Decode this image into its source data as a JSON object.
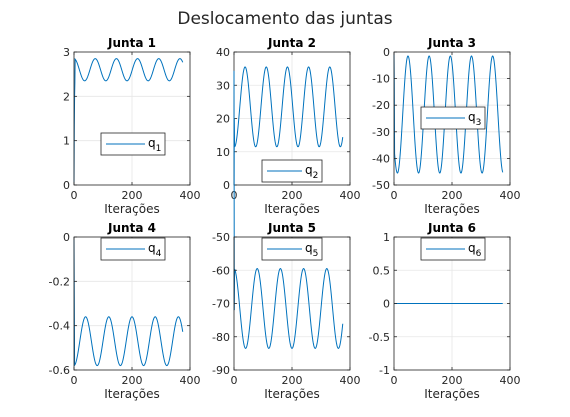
{
  "figure": {
    "title": "Deslocamento das juntas"
  },
  "colors": {
    "line": "#0072BD",
    "grid": "#e6e6e6",
    "axis": "#262626",
    "bg": "#ffffff"
  },
  "chart_data": [
    {
      "type": "line",
      "title": "Junta 1",
      "xlabel": "Iterações",
      "ylabel": "",
      "xlim": [
        0,
        400
      ],
      "ylim": [
        0,
        3
      ],
      "xticks": [
        0,
        200,
        400
      ],
      "yticks": [
        0,
        1,
        2,
        3
      ],
      "grid": true,
      "legend_position": "lower-center",
      "series": [
        {
          "name": "q1",
          "legend_base": "q",
          "legend_sub": "1",
          "model": {
            "x_start": 0,
            "x_end": 375,
            "offset": 2.6,
            "amplitude": 0.25,
            "period": 73,
            "phase_x": 55,
            "initial_values": [
              0,
              1.25,
              2.0,
              2.3
            ]
          }
        }
      ]
    },
    {
      "type": "line",
      "title": "Junta 2",
      "xlabel": "Iterações",
      "ylabel": "",
      "xlim": [
        0,
        400
      ],
      "ylim": [
        0,
        40
      ],
      "xticks": [
        0,
        200,
        400
      ],
      "yticks": [
        0,
        10,
        20,
        30,
        40
      ],
      "grid": true,
      "legend_position": "bottom-center",
      "series": [
        {
          "name": "q2",
          "legend_base": "q",
          "legend_sub": "2",
          "model": {
            "x_start": 0,
            "x_end": 375,
            "offset": 23.5,
            "amplitude": 12,
            "period": 73,
            "phase_x": 20,
            "initial_values": [
              0,
              20
            ]
          }
        }
      ]
    },
    {
      "type": "line",
      "title": "Junta 3",
      "xlabel": "Iterações",
      "ylabel": "",
      "xlim": [
        0,
        400
      ],
      "ylim": [
        -50,
        0
      ],
      "xticks": [
        0,
        200,
        400
      ],
      "yticks": [
        -50,
        -40,
        -30,
        -20,
        -10,
        0
      ],
      "grid": true,
      "legend_position": "middle-center",
      "series": [
        {
          "name": "q3",
          "legend_base": "q",
          "legend_sub": "3",
          "model": {
            "x_start": 0,
            "x_end": 375,
            "offset": -23.5,
            "amplitude": 22,
            "period": 73,
            "phase_x": 30,
            "initial_values": [
              0,
              -12
            ]
          }
        }
      ]
    },
    {
      "type": "line",
      "title": "Junta 4",
      "xlabel": "Iterações",
      "ylabel": "",
      "xlim": [
        0,
        400
      ],
      "ylim": [
        -0.6,
        0
      ],
      "xticks": [
        0,
        200,
        400
      ],
      "yticks": [
        -0.6,
        -0.4,
        -0.2,
        0
      ],
      "grid": true,
      "legend_position": "top-center",
      "series": [
        {
          "name": "q4",
          "legend_base": "q",
          "legend_sub": "4",
          "model": {
            "x_start": 0,
            "x_end": 375,
            "offset": -0.47,
            "amplitude": 0.11,
            "period": 80,
            "phase_x": 20,
            "initial_values": [
              0,
              -0.27
            ]
          }
        }
      ]
    },
    {
      "type": "line",
      "title": "Junta 5",
      "xlabel": "Iterações",
      "ylabel": "",
      "xlim": [
        0,
        400
      ],
      "ylim": [
        -90,
        -50
      ],
      "xticks": [
        0,
        200,
        400
      ],
      "yticks": [
        -90,
        -80,
        -70,
        -60,
        -50
      ],
      "grid": true,
      "legend_position": "top-center",
      "series": [
        {
          "name": "q5",
          "legend_base": "q",
          "legend_sub": "5",
          "model": {
            "x_start": 0,
            "x_end": 375,
            "offset": -71.5,
            "amplitude": 12,
            "period": 80,
            "phase_x": 60,
            "initial_values": [
              0,
              -72
            ]
          }
        }
      ]
    },
    {
      "type": "line",
      "title": "Junta 6",
      "xlabel": "Iterações",
      "ylabel": "",
      "xlim": [
        0,
        400
      ],
      "ylim": [
        -1,
        1
      ],
      "xticks": [
        0,
        200,
        400
      ],
      "yticks": [
        -1,
        -0.5,
        0,
        0.5,
        1
      ],
      "grid": true,
      "legend_position": "top-center",
      "series": [
        {
          "name": "q6",
          "legend_base": "q",
          "legend_sub": "6",
          "model": {
            "x_start": 0,
            "x_end": 375,
            "offset": 0,
            "amplitude": 0,
            "period": 80,
            "phase_x": 0,
            "initial_values": [
              0,
              0
            ]
          }
        }
      ]
    }
  ]
}
